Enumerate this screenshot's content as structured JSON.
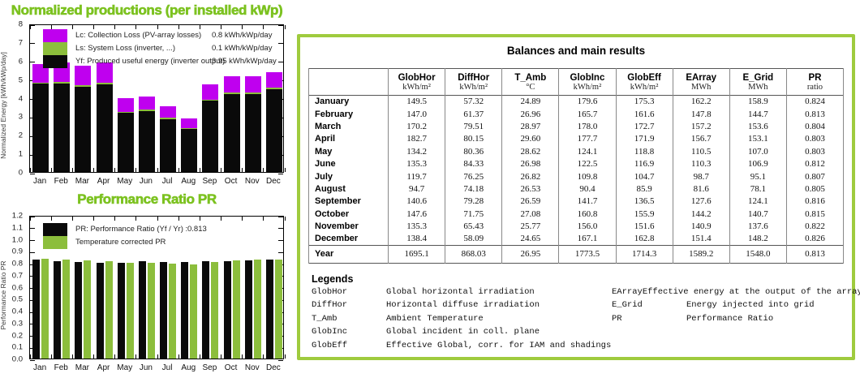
{
  "accent_colors": {
    "title_green": "#7cc220",
    "panel_border_green": "#9fcb3e",
    "loss_magenta": "#bf00ef",
    "bar_green": "#8cbe3c",
    "bar_black": "#0a0a0a"
  },
  "chart_data": [
    {
      "type": "stacked-bar",
      "title": "Normalized productions (per installed kWp)",
      "ylabel": "Normalized Energy [kWh/kWp/day]",
      "ylim": [
        0,
        8
      ],
      "yticks": [
        "0",
        "1",
        "2",
        "3",
        "4",
        "5",
        "6",
        "7",
        "8"
      ],
      "months": [
        "Jan",
        "Feb",
        "Mar",
        "Apr",
        "May",
        "Jun",
        "Jul",
        "Aug",
        "Sep",
        "Oct",
        "Nov",
        "Dec"
      ],
      "series": [
        {
          "id": "yf",
          "label": "Yf: Produced useful energy  (inverter output)",
          "value_label": "3.95 kWh/kWp/day",
          "color": "#0a0a0a",
          "values": [
            4.75,
            4.78,
            4.6,
            4.72,
            3.18,
            3.3,
            2.85,
            2.32,
            3.83,
            4.2,
            4.2,
            4.45
          ]
        },
        {
          "id": "ls",
          "label": "Ls: System Loss  (inverter, ...)",
          "value_label": "0.1 kWh/kWp/day",
          "color": "#8cbe3c",
          "values": [
            0.08,
            0.08,
            0.08,
            0.08,
            0.07,
            0.07,
            0.06,
            0.06,
            0.07,
            0.08,
            0.08,
            0.08
          ]
        },
        {
          "id": "lc",
          "label": "Lc: Collection Loss (PV-array losses)",
          "value_label": "0.8 kWh/kWp/day",
          "color": "#bf00ef",
          "values": [
            0.97,
            1.04,
            1.05,
            1.1,
            0.75,
            0.7,
            0.61,
            0.52,
            0.82,
            0.9,
            0.9,
            0.85
          ]
        }
      ],
      "legend_order": [
        "lc",
        "ls",
        "yf"
      ]
    },
    {
      "type": "grouped-bar",
      "title": "Performance Ratio PR",
      "ylabel": "Performance Ratio PR",
      "ylim": [
        0,
        1.2
      ],
      "yticks": [
        "0.0",
        "0.1",
        "0.2",
        "0.3",
        "0.4",
        "0.5",
        "0.6",
        "0.7",
        "0.8",
        "0.9",
        "1.0",
        "1.1",
        "1.2"
      ],
      "months": [
        "Jan",
        "Feb",
        "Mar",
        "Apr",
        "May",
        "Jun",
        "Jul",
        "Aug",
        "Sep",
        "Oct",
        "Nov",
        "Dec"
      ],
      "series": [
        {
          "id": "pr",
          "label": "PR: Performance Ratio (Yf / Yr) :",
          "value_label": "0.813",
          "color": "#0a0a0a",
          "values": [
            0.824,
            0.813,
            0.804,
            0.803,
            0.803,
            0.812,
            0.807,
            0.805,
            0.816,
            0.815,
            0.822,
            0.826
          ]
        },
        {
          "id": "prc",
          "label": "Temperature corrected PR",
          "value_label": "",
          "color": "#8cbe3c",
          "values": [
            0.832,
            0.826,
            0.82,
            0.816,
            0.8,
            0.798,
            0.791,
            0.786,
            0.808,
            0.818,
            0.825,
            0.83
          ]
        }
      ],
      "legend_order": [
        "pr",
        "prc"
      ]
    },
    {
      "type": "table",
      "title": "Balances and main results",
      "headers": [
        "",
        "GlobHor",
        "DiffHor",
        "T_Amb",
        "GlobInc",
        "GlobEff",
        "EArray",
        "E_Grid",
        "PR"
      ],
      "units": [
        "",
        "kWh/m²",
        "kWh/m²",
        "°C",
        "kWh/m²",
        "kWh/m²",
        "MWh",
        "MWh",
        "ratio"
      ],
      "rows": [
        [
          "January",
          "149.5",
          "57.32",
          "24.89",
          "179.6",
          "175.3",
          "162.2",
          "158.9",
          "0.824"
        ],
        [
          "February",
          "147.0",
          "61.37",
          "26.96",
          "165.7",
          "161.6",
          "147.8",
          "144.7",
          "0.813"
        ],
        [
          "March",
          "170.2",
          "79.51",
          "28.97",
          "178.0",
          "172.7",
          "157.2",
          "153.6",
          "0.804"
        ],
        [
          "April",
          "182.7",
          "80.15",
          "29.60",
          "177.7",
          "171.9",
          "156.7",
          "153.1",
          "0.803"
        ],
        [
          "May",
          "134.2",
          "80.36",
          "28.62",
          "124.1",
          "118.8",
          "110.5",
          "107.0",
          "0.803"
        ],
        [
          "June",
          "135.3",
          "84.33",
          "26.98",
          "122.5",
          "116.9",
          "110.3",
          "106.9",
          "0.812"
        ],
        [
          "July",
          "119.7",
          "76.25",
          "26.82",
          "109.8",
          "104.7",
          "98.7",
          "95.1",
          "0.807"
        ],
        [
          "August",
          "94.7",
          "74.18",
          "26.53",
          "90.4",
          "85.9",
          "81.6",
          "78.1",
          "0.805"
        ],
        [
          "September",
          "140.6",
          "79.28",
          "26.59",
          "141.7",
          "136.5",
          "127.6",
          "124.1",
          "0.816"
        ],
        [
          "October",
          "147.6",
          "71.75",
          "27.08",
          "160.8",
          "155.9",
          "144.2",
          "140.7",
          "0.815"
        ],
        [
          "November",
          "135.3",
          "65.43",
          "25.77",
          "156.0",
          "151.6",
          "140.9",
          "137.6",
          "0.822"
        ],
        [
          "December",
          "138.4",
          "58.09",
          "24.65",
          "167.1",
          "162.8",
          "151.4",
          "148.2",
          "0.826"
        ]
      ],
      "year_row": [
        "Year",
        "1695.1",
        "868.03",
        "26.95",
        "1773.5",
        "1714.3",
        "1589.2",
        "1548.0",
        "0.813"
      ]
    }
  ],
  "legends_panel": {
    "title": "Legends",
    "left": [
      {
        "term": "GlobHor",
        "desc": "Global horizontal irradiation"
      },
      {
        "term": "DiffHor",
        "desc": "Horizontal diffuse irradiation"
      },
      {
        "term": "T_Amb",
        "desc": "Ambient Temperature"
      },
      {
        "term": "GlobInc",
        "desc": "Global incident in coll. plane"
      },
      {
        "term": "GlobEff",
        "desc": "Effective Global, corr. for IAM and shadings"
      }
    ],
    "right": [
      {
        "term": "EArray",
        "desc": "Effective energy at the output of the array"
      },
      {
        "term": "E_Grid",
        "desc": "Energy injected into grid"
      },
      {
        "term": "PR",
        "desc": "Performance Ratio"
      }
    ]
  }
}
